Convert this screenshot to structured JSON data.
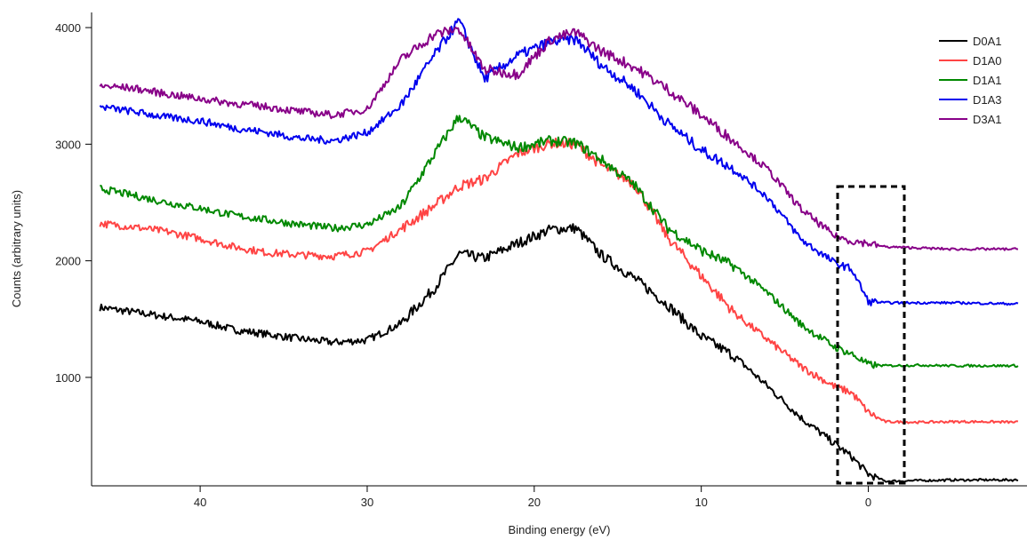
{
  "chart_data": {
    "type": "line",
    "xlabel": "Binding energy (eV)",
    "ylabel": "Counts (arbitrary units)",
    "x_reversed": true,
    "xlim": [
      46.5,
      -9.5
    ],
    "ylim": [
      70,
      4130
    ],
    "xticks": [
      40,
      30,
      20,
      10,
      0
    ],
    "yticks": [
      1000,
      2000,
      3000,
      4000
    ],
    "grid": false,
    "legend_position": "top-right",
    "x": [
      46,
      44,
      42,
      40,
      38,
      36,
      34,
      32,
      30,
      28,
      26,
      24.5,
      23,
      21,
      19,
      17.5,
      16,
      14,
      12,
      10,
      8,
      6,
      4,
      2,
      1,
      0,
      -1,
      -3,
      -5,
      -7,
      -9
    ],
    "series": [
      {
        "name": "D0A1",
        "color": "#000000",
        "values": [
          1600,
          1560,
          1520,
          1480,
          1410,
          1370,
          1330,
          1300,
          1320,
          1460,
          1760,
          2060,
          2020,
          2150,
          2270,
          2280,
          2050,
          1850,
          1620,
          1350,
          1180,
          920,
          650,
          430,
          320,
          170,
          110,
          115,
          120,
          120,
          120
        ]
      },
      {
        "name": "D1A0",
        "color": "#ff4444",
        "values": [
          2320,
          2290,
          2250,
          2190,
          2120,
          2070,
          2050,
          2040,
          2080,
          2270,
          2470,
          2640,
          2700,
          2920,
          3010,
          3000,
          2820,
          2660,
          2200,
          1870,
          1550,
          1320,
          1090,
          920,
          870,
          700,
          620,
          615,
          620,
          620,
          615
        ]
      },
      {
        "name": "D1A1",
        "color": "#008800",
        "values": [
          2620,
          2560,
          2500,
          2450,
          2390,
          2350,
          2310,
          2280,
          2310,
          2460,
          2910,
          3240,
          3060,
          2970,
          3030,
          3010,
          2870,
          2650,
          2280,
          2090,
          1950,
          1720,
          1450,
          1260,
          1200,
          1110,
          1100,
          1105,
          1100,
          1100,
          1100
        ]
      },
      {
        "name": "D1A3",
        "color": "#0000ee",
        "values": [
          3320,
          3280,
          3230,
          3200,
          3140,
          3100,
          3050,
          3030,
          3100,
          3330,
          3760,
          4060,
          3560,
          3760,
          3880,
          3900,
          3680,
          3470,
          3180,
          2950,
          2780,
          2540,
          2180,
          1980,
          1930,
          1650,
          1640,
          1640,
          1640,
          1635,
          1630
        ]
      },
      {
        "name": "D3A1",
        "color": "#880088",
        "values": [
          3500,
          3480,
          3430,
          3390,
          3350,
          3320,
          3280,
          3250,
          3300,
          3720,
          3940,
          3990,
          3640,
          3600,
          3900,
          3960,
          3800,
          3660,
          3470,
          3250,
          3020,
          2780,
          2440,
          2210,
          2170,
          2150,
          2120,
          2110,
          2100,
          2100,
          2100
        ]
      }
    ]
  }
}
